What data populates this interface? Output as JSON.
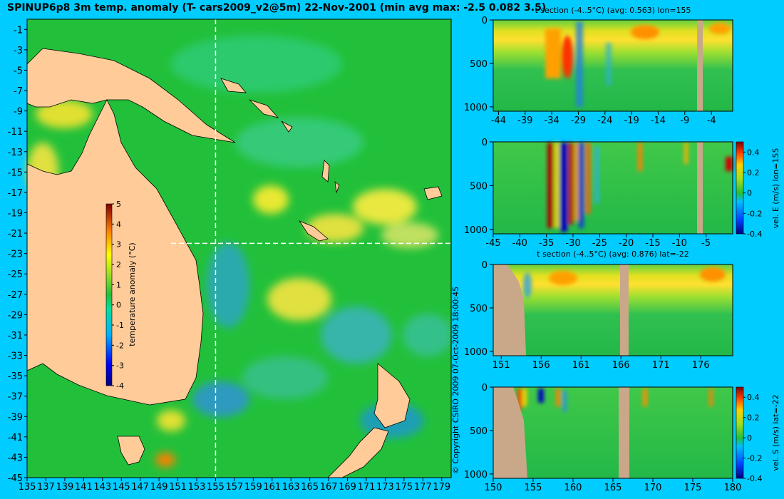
{
  "main_title": "SPINUP6p8 3m temp. anomaly (T- cars2009_v2@5m) 22-Nov-2001 (min avg max: -2.5 0.082 3.5)",
  "copyright": "© Copyright CSIRO 2009   07-Oct-2009 18:00:45",
  "colors": {
    "background": "#00ccff",
    "ocean": "#22c03a",
    "land": "#ffcc99",
    "section_land": "#c8a888"
  },
  "chart_data": [
    {
      "type": "heatmap",
      "id": "map",
      "title": "SPINUP6p8 3m temp. anomaly (T- cars2009_v2@5m) 22-Nov-2001 (min avg max: -2.5 0.082 3.5)",
      "xlim": [
        135,
        180
      ],
      "ylim": [
        -45,
        0
      ],
      "xticks": [
        "135",
        "137",
        "139",
        "141",
        "143",
        "145",
        "147",
        "149",
        "151",
        "153",
        "155",
        "157",
        "159",
        "161",
        "163",
        "165",
        "167",
        "169",
        "171",
        "173",
        "175",
        "177",
        "179"
      ],
      "yticks": [
        "-1",
        "-3",
        "-5",
        "-7",
        "-9",
        "-11",
        "-13",
        "-15",
        "-17",
        "-19",
        "-21",
        "-23",
        "-25",
        "-27",
        "-29",
        "-31",
        "-33",
        "-35",
        "-37",
        "-39",
        "-41",
        "-43",
        "-45"
      ],
      "section_lines": {
        "lon": 155,
        "lat": -22
      },
      "colorbar": {
        "label": "temperature anomaly (°C)",
        "range": [
          -4,
          5
        ],
        "ticks": [
          "5",
          "4",
          "3",
          "2",
          "1",
          "0",
          "-1",
          "-2",
          "-3",
          "-4"
        ]
      },
      "stats": {
        "min": -2.5,
        "avg": 0.082,
        "max": 3.5
      }
    },
    {
      "type": "heatmap",
      "id": "t-lon",
      "title": "t section (-4..5°C) (avg: 0.563) lon=155",
      "xlim": [
        -45,
        0
      ],
      "ylim": [
        1050,
        0
      ],
      "xticks": [
        "-44",
        "-39",
        "-34",
        "-29",
        "-24",
        "-19",
        "-14",
        "-9",
        "-4"
      ],
      "yticks": [
        "0",
        "500",
        "1000"
      ]
    },
    {
      "type": "heatmap",
      "id": "v-lon",
      "xlim": [
        -45,
        0
      ],
      "ylim": [
        1050,
        0
      ],
      "xticks": [
        "-45",
        "-40",
        "-35",
        "-30",
        "-25",
        "-20",
        "-15",
        "-10",
        "-5"
      ],
      "yticks": [
        "0",
        "500",
        "1000"
      ],
      "colorbar": {
        "label": "vel. E (m/s) lon=155",
        "range": [
          -0.4,
          0.5
        ],
        "ticks": [
          "0.4",
          "0.2",
          "0",
          "-0.2",
          "-0.4"
        ]
      }
    },
    {
      "type": "heatmap",
      "id": "t-lat",
      "title": "t section (-4..5°C) (avg: 0.876) lat=-22",
      "xlim": [
        150,
        180
      ],
      "ylim": [
        1050,
        0
      ],
      "xticks": [
        "151",
        "156",
        "161",
        "166",
        "171",
        "176"
      ],
      "yticks": [
        "0",
        "500",
        "1000"
      ]
    },
    {
      "type": "heatmap",
      "id": "v-lat",
      "xlim": [
        150,
        180
      ],
      "ylim": [
        1050,
        0
      ],
      "xticks": [
        "150",
        "155",
        "160",
        "165",
        "170",
        "175",
        "180"
      ],
      "yticks": [
        "0",
        "500",
        "1000"
      ],
      "colorbar": {
        "label": "vel. S (m/s) lat=-22",
        "range": [
          -0.4,
          0.5
        ],
        "ticks": [
          "0.4",
          "0.2",
          "0",
          "-0.2",
          "-0.4"
        ]
      }
    }
  ]
}
